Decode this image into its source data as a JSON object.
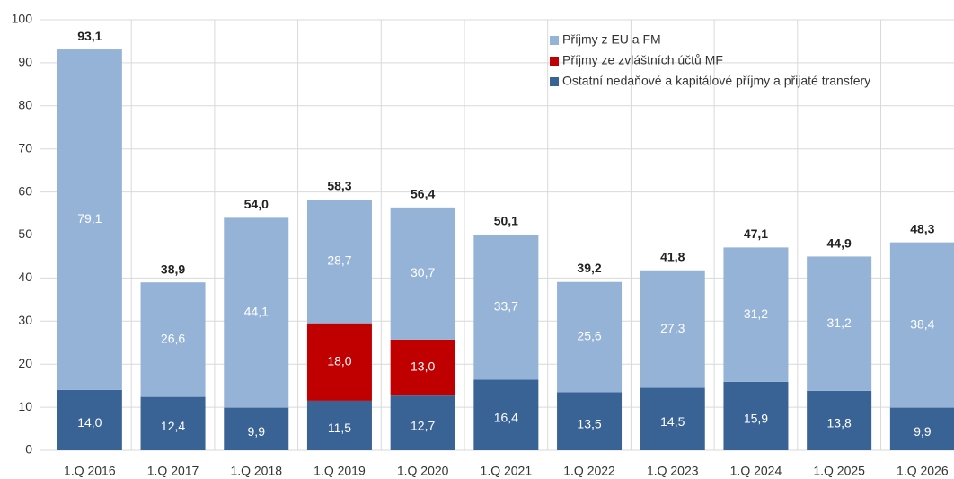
{
  "chart_data": {
    "type": "stacked_bar",
    "categories": [
      "1.Q 2016",
      "1.Q 2017",
      "1.Q 2018",
      "1.Q 2019",
      "1.Q 2020",
      "1.Q 2021",
      "1.Q 2022",
      "1.Q 2023",
      "1.Q 2024",
      "1.Q 2025",
      "1.Q 2026"
    ],
    "series": [
      {
        "name": "Ostatní nedaňové a kapitálové příjmy a přijaté transfery",
        "color": "#3a6395",
        "values": [
          14.0,
          12.4,
          9.9,
          11.5,
          12.7,
          16.4,
          13.5,
          14.5,
          15.9,
          13.8,
          9.9
        ],
        "value_labels": [
          "14,0",
          "12,4",
          "9,9",
          "11,5",
          "12,7",
          "16,4",
          "13,5",
          "14,5",
          "15,9",
          "13,8",
          "9,9"
        ]
      },
      {
        "name": "Příjmy ze zvláštních účtů MF",
        "color": "#c00000",
        "values": [
          null,
          null,
          null,
          18.0,
          13.0,
          null,
          null,
          null,
          null,
          null,
          null
        ],
        "value_labels": [
          null,
          null,
          null,
          "18,0",
          "13,0",
          null,
          null,
          null,
          null,
          null,
          null
        ]
      },
      {
        "name": "Příjmy z EU a FM",
        "color": "#95b3d7",
        "values": [
          79.1,
          26.6,
          44.1,
          28.7,
          30.7,
          33.7,
          25.6,
          27.3,
          31.2,
          31.2,
          38.4
        ],
        "value_labels": [
          "79,1",
          "26,6",
          "44,1",
          "28,7",
          "30,7",
          "33,7",
          "25,6",
          "27,3",
          "31,2",
          "31,2",
          "38,4"
        ]
      }
    ],
    "totals": [
      93.1,
      38.9,
      54.0,
      58.3,
      56.4,
      50.1,
      39.2,
      41.8,
      47.1,
      44.9,
      48.3
    ],
    "totals_labels": [
      "93,1",
      "38,9",
      "54,0",
      "58,3",
      "56,4",
      "50,1",
      "39,2",
      "41,8",
      "47,1",
      "44,9",
      "48,3"
    ],
    "ylim": [
      0,
      100
    ],
    "yticks": [
      0,
      10,
      20,
      30,
      40,
      50,
      60,
      70,
      80,
      90,
      100
    ],
    "grid": true,
    "legend": "top-right"
  }
}
